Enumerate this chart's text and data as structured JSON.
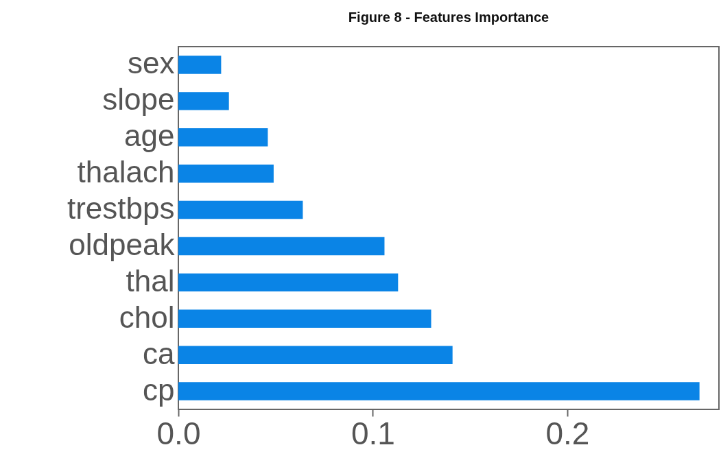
{
  "chart_data": {
    "type": "bar",
    "orientation": "horizontal",
    "title": "Figure 8 - Features Importance",
    "categories": [
      "sex",
      "slope",
      "age",
      "thalach",
      "trestbps",
      "oldpeak",
      "thal",
      "chol",
      "ca",
      "cp"
    ],
    "values": [
      0.022,
      0.026,
      0.046,
      0.049,
      0.064,
      0.106,
      0.113,
      0.13,
      0.141,
      0.268
    ],
    "color": "#0a84e6",
    "xlim": [
      0,
      0.278
    ],
    "xticks": [
      {
        "value": 0,
        "label": "0.0"
      },
      0.1,
      0.2
    ],
    "grid": false
  }
}
